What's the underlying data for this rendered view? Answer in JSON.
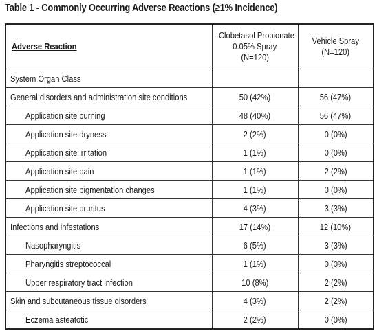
{
  "title": "Table 1 - Commonly Occurring Adverse Reactions (≥1% Incidence)",
  "headers": {
    "reaction": "Adverse Reaction",
    "drug_line1": "Clobetasol Propionate",
    "drug_line2": "0.05% Spray",
    "drug_line3": "(N=120)",
    "vehicle_line1": "Vehicle Spray",
    "vehicle_line2": "(N=120)"
  },
  "rows": [
    {
      "name": "System Organ Class",
      "drug": "",
      "vehicle": "",
      "indent": false
    },
    {
      "name": "General disorders and administration site conditions",
      "drug": "50 (42%)",
      "vehicle": "56 (47%)",
      "indent": false
    },
    {
      "name": "Application site burning",
      "drug": "48 (40%)",
      "vehicle": "56 (47%)",
      "indent": true
    },
    {
      "name": "Application site dryness",
      "drug": "2 (2%)",
      "vehicle": "0 (0%)",
      "indent": true
    },
    {
      "name": "Application site irritation",
      "drug": "1 (1%)",
      "vehicle": "0 (0%)",
      "indent": true
    },
    {
      "name": "Application site pain",
      "drug": "1 (1%)",
      "vehicle": "2 (2%)",
      "indent": true
    },
    {
      "name": "Application site pigmentation changes",
      "drug": "1 (1%)",
      "vehicle": "0 (0%)",
      "indent": true
    },
    {
      "name": "Application site pruritus",
      "drug": "4 (3%)",
      "vehicle": "3 (3%)",
      "indent": true
    },
    {
      "name": "Infections and infestations",
      "drug": "17 (14%)",
      "vehicle": "12 (10%)",
      "indent": false
    },
    {
      "name": "Nasopharyngitis",
      "drug": "6 (5%)",
      "vehicle": "3 (3%)",
      "indent": true
    },
    {
      "name": "Pharyngitis streptococcal",
      "drug": "1 (1%)",
      "vehicle": "0 (0%)",
      "indent": true
    },
    {
      "name": "Upper respiratory tract infection",
      "drug": "10 (8%)",
      "vehicle": "2 (2%)",
      "indent": true
    },
    {
      "name": "Skin and subcutaneous tissue disorders",
      "drug": "4 (3%)",
      "vehicle": "2 (2%)",
      "indent": false
    },
    {
      "name": "Eczema asteatotic",
      "drug": "2 (2%)",
      "vehicle": "0 (0%)",
      "indent": true
    }
  ]
}
